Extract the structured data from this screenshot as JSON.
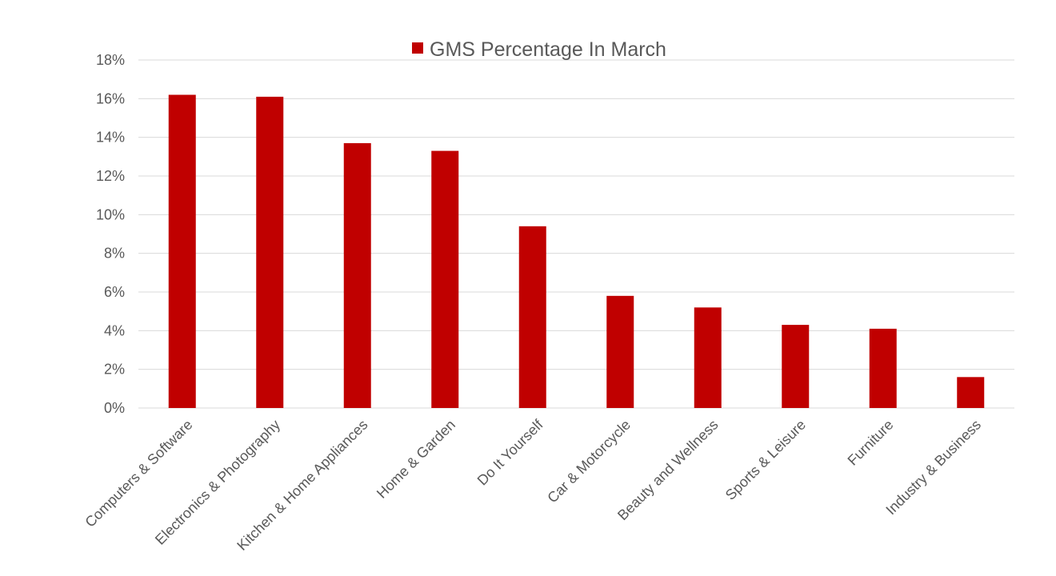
{
  "chart_data": {
    "type": "bar",
    "categories": [
      "Computers & Software",
      "Electronics & Photography",
      "Kitchen & Home Appliances",
      "Home & Garden",
      "Do It Yourself",
      "Car & Motorcycle",
      "Beauty and Wellness",
      "Sports & Leisure",
      "Furniture",
      "Industry & Business"
    ],
    "series": [
      {
        "name": "GMS Percentage In March",
        "color": "#c00000",
        "values": [
          16.2,
          16.1,
          13.7,
          13.3,
          9.4,
          5.8,
          5.2,
          4.3,
          4.1,
          1.6
        ]
      }
    ],
    "ylim": [
      0,
      18
    ],
    "yticks": [
      0,
      2,
      4,
      6,
      8,
      10,
      12,
      14,
      16,
      18
    ],
    "ytick_labels": [
      "0%",
      "2%",
      "4%",
      "6%",
      "8%",
      "10%",
      "12%",
      "14%",
      "16%",
      "18%"
    ],
    "grid": true,
    "legend": "top-center",
    "gridline_color": "#d9d9d9",
    "text_color": "#595959"
  }
}
